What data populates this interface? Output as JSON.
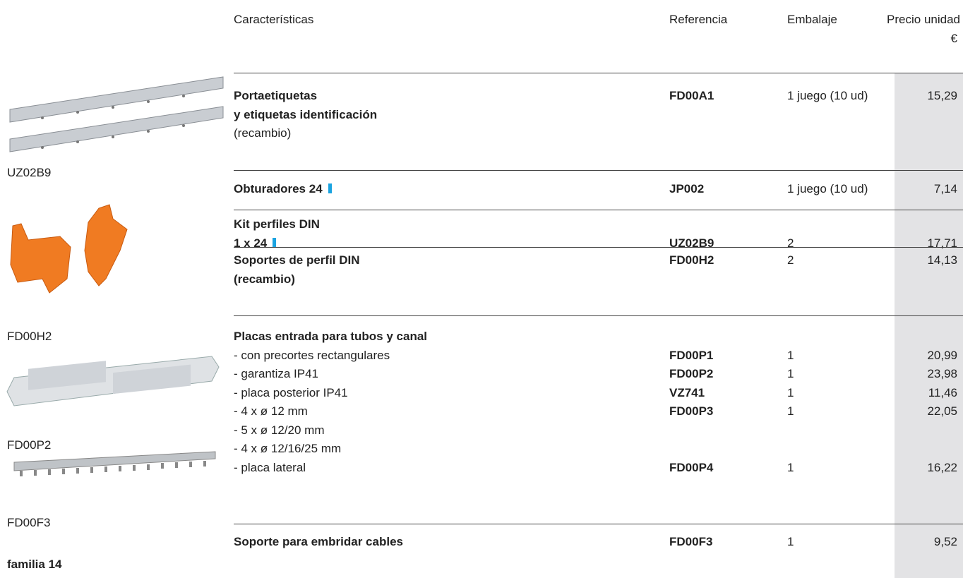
{
  "header": {
    "features": "Características",
    "reference": "Referencia",
    "packaging": "Embalaje",
    "unit_price": "Precio unidad",
    "currency": "€"
  },
  "images": [
    {
      "caption": "UZ02B9"
    },
    {
      "caption": "FD00H2"
    },
    {
      "caption": "FD00P2"
    },
    {
      "caption": "FD00F3"
    }
  ],
  "footer": "familia 14",
  "groups": [
    {
      "title": [
        "Portaetiquetas",
        "y etiquetas identificación"
      ],
      "note": "(recambio)",
      "reference": "FD00A1",
      "packaging": "1 juego (10 ud)",
      "price": "15,29"
    },
    {
      "title": [
        "Obturadores 24"
      ],
      "marker": true,
      "reference": "JP002",
      "packaging": "1 juego (10 ud)",
      "price": "7,14"
    },
    {
      "title": [
        "Kit perfiles DIN",
        "1 x 24"
      ],
      "marker": true,
      "reference": "UZ02B9",
      "packaging": "2",
      "price": "17,71"
    },
    {
      "title": [
        "Soportes de perfil DIN",
        "(recambio)"
      ],
      "reference": "FD00H2",
      "packaging": "2",
      "price": "14,13"
    },
    {
      "title": [
        "Placas entrada para tubos y canal"
      ],
      "items": [
        {
          "text": "- con precortes rectangulares",
          "reference": "FD00P1",
          "packaging": "1",
          "price": "20,99"
        },
        {
          "text": "- garantiza IP41",
          "reference": "FD00P2",
          "packaging": "1",
          "price": "23,98"
        },
        {
          "text": "- placa posterior IP41",
          "reference": "VZ741",
          "packaging": "1",
          "price": "11,46"
        },
        {
          "text": "- 4 x ø 12 mm",
          "reference": "FD00P3",
          "packaging": "1",
          "price": "22,05"
        },
        {
          "text": "- 5 x ø 12/20 mm"
        },
        {
          "text": "- 4 x ø 12/16/25 mm"
        },
        {
          "text": "- placa lateral",
          "reference": "FD00P4",
          "packaging": "1",
          "price": "16,22"
        }
      ]
    },
    {
      "title": [
        "Soporte para embridar cables"
      ],
      "reference": "FD00F3",
      "packaging": "1",
      "price": "9,52"
    }
  ]
}
